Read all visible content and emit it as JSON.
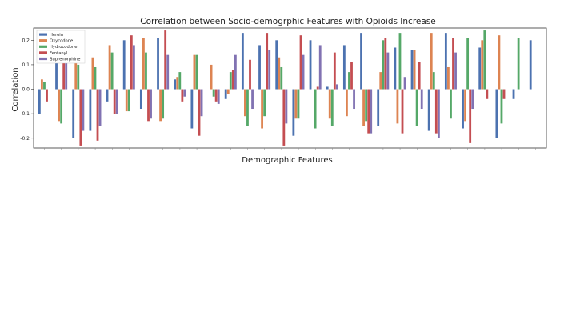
{
  "chart_data": {
    "type": "bar",
    "title": "Correlation between Socio-demogrphic Features with Opioids Increase",
    "xlabel": "Demographic Features",
    "ylabel": "Correlation",
    "ylim": [
      -0.24,
      0.25
    ],
    "yticks": [
      "0.2",
      "0.1",
      "0.0",
      "-0.1",
      "-0.2"
    ],
    "ytick_values": [
      0.2,
      0.1,
      0.0,
      -0.1,
      -0.2
    ],
    "grid": false,
    "legend_position": "top-left",
    "categories_count": 30,
    "series": [
      {
        "name": "Heroin",
        "color": "#4c72b0",
        "values": [
          -0.1,
          0.14,
          -0.2,
          -0.17,
          -0.05,
          0.2,
          -0.08,
          0.21,
          0.04,
          -0.16,
          0.0,
          -0.04,
          0.23,
          0.18,
          0.2,
          -0.19,
          0.2,
          0.01,
          0.18,
          0.23,
          -0.15,
          0.17,
          0.16,
          -0.17,
          0.23,
          -0.16,
          0.17,
          -0.2,
          -0.04,
          0.2
        ]
      },
      {
        "name": "Oxycodone",
        "color": "#dd8452",
        "values": [
          0.04,
          -0.13,
          0.12,
          0.13,
          0.18,
          -0.09,
          0.21,
          -0.13,
          0.05,
          0.14,
          0.1,
          -0.02,
          -0.11,
          -0.16,
          0.13,
          -0.12,
          0.0,
          -0.12,
          -0.11,
          -0.15,
          0.07,
          -0.14,
          0.16,
          0.23,
          0.09,
          -0.13,
          0.2,
          0.22,
          0.0,
          0.0
        ]
      },
      {
        "name": "Hydrocodone",
        "color": "#55a868",
        "values": [
          0.03,
          -0.14,
          0.1,
          0.09,
          0.15,
          -0.09,
          0.15,
          -0.12,
          0.07,
          0.14,
          -0.03,
          0.07,
          -0.15,
          -0.11,
          0.09,
          -0.12,
          -0.16,
          -0.15,
          0.07,
          -0.13,
          0.2,
          0.23,
          -0.15,
          0.07,
          -0.12,
          0.21,
          0.24,
          -0.14,
          0.21,
          0.0
        ]
      },
      {
        "name": "Fentanyl",
        "color": "#c44e52",
        "values": [
          -0.05,
          0.12,
          -0.23,
          -0.21,
          -0.1,
          0.22,
          -0.13,
          0.24,
          -0.05,
          -0.19,
          -0.05,
          0.08,
          0.12,
          0.23,
          -0.23,
          0.22,
          0.01,
          0.15,
          0.11,
          -0.18,
          0.21,
          -0.18,
          0.11,
          -0.18,
          0.21,
          -0.22,
          -0.04,
          -0.04,
          0.0,
          0.0
        ]
      },
      {
        "name": "Buprenorphine",
        "color": "#8172b2",
        "values": [
          0.0,
          0.11,
          -0.17,
          -0.15,
          -0.1,
          0.18,
          -0.12,
          0.14,
          -0.03,
          -0.11,
          -0.06,
          0.14,
          -0.08,
          0.16,
          -0.14,
          0.14,
          0.18,
          0.02,
          -0.08,
          -0.18,
          0.15,
          0.05,
          -0.08,
          -0.2,
          0.15,
          -0.08,
          0.0,
          0.0,
          0.0,
          0.0
        ]
      }
    ]
  }
}
